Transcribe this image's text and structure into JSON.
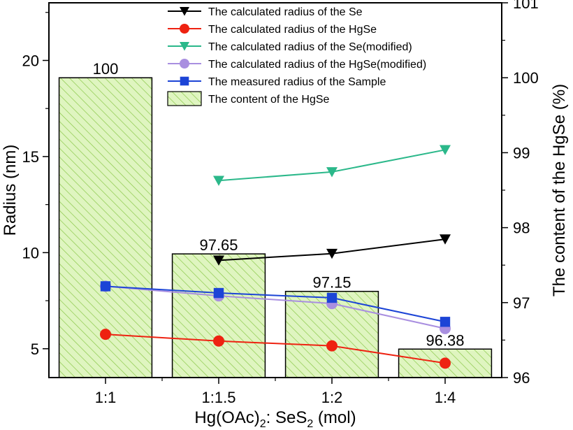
{
  "chart_data": {
    "type": "bar+line",
    "categories": [
      "1:1",
      "1:1.5",
      "1:2",
      "1:4"
    ],
    "xlabel": {
      "main": "Hg(OAc)",
      "sub": "2",
      "tail": ": SeS",
      "sub2": "2",
      "end": " (mol)"
    },
    "ylabel_left": "Radius (nm)",
    "ylabel_right": "The content of the HgSe (%)",
    "ylim_left": [
      3.5,
      23.0
    ],
    "ylim_right": [
      96,
      101
    ],
    "yticks_left": [
      5,
      10,
      15,
      20
    ],
    "yticks_right": [
      96,
      97,
      98,
      99,
      100,
      101
    ],
    "grid": false,
    "legend_position": "top-right",
    "bars": {
      "name": "The content of the HgSe",
      "axis": "right",
      "values": [
        100,
        97.65,
        97.15,
        96.38
      ],
      "labels": [
        "100",
        "97.65",
        "97.15",
        "96.38"
      ],
      "fill": "#dff5c0",
      "hatch": "#8bc84a"
    },
    "series": [
      {
        "name": "The calculated radius of the Se",
        "color": "#000000",
        "marker": "triangle-down",
        "x": [
          1,
          2,
          3
        ],
        "values": [
          9.6,
          9.95,
          10.7
        ]
      },
      {
        "name": "The calculated radius of the HgSe",
        "color": "#ee2211",
        "marker": "circle",
        "x": [
          0,
          1,
          2,
          3
        ],
        "values": [
          5.75,
          5.4,
          5.15,
          4.25
        ]
      },
      {
        "name": "The calculated radius of the Se(modified)",
        "color": "#2bb88a",
        "marker": "triangle-down",
        "x": [
          1,
          2,
          3
        ],
        "values": [
          13.75,
          14.2,
          15.35
        ]
      },
      {
        "name": "The calculated radius of the HgSe(modified)",
        "color": "#a98fe0",
        "marker": "circle",
        "x": [
          0,
          1,
          2,
          3
        ],
        "values": [
          8.25,
          7.75,
          7.35,
          6.05
        ]
      },
      {
        "name": "The measured radius of the Sample",
        "color": "#1c44d6",
        "marker": "square",
        "x": [
          0,
          1,
          2,
          3
        ],
        "values": [
          8.25,
          7.9,
          7.65,
          6.4
        ]
      }
    ]
  }
}
